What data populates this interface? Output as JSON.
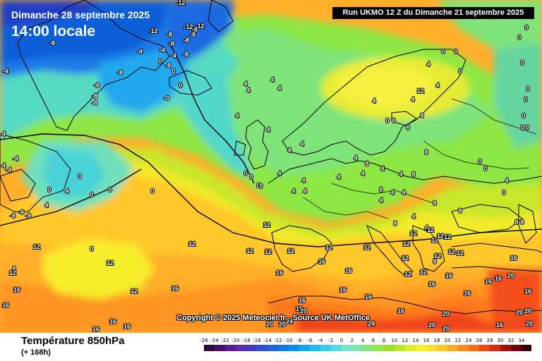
{
  "header": {
    "date": "Dimanche 28 septembre 2025",
    "time": "14:00 locale",
    "run": "Run UKMO 12 Z du Dimanche 21 septembre 2025"
  },
  "copyright": "Copyright © 2025 Meteociel.fr - Source UK MetOffice",
  "footer": {
    "title": "Température 850hPa",
    "subtitle": "(+ 168h)"
  },
  "scale": {
    "ticks": [
      "-26",
      "-24",
      "-22",
      "-20",
      "-18",
      "-16",
      "-14",
      "-12",
      "-10",
      "-8",
      "-6",
      "-4",
      "-2",
      "0",
      "2",
      "4",
      "6",
      "8",
      "10",
      "12",
      "14",
      "16",
      "18",
      "20",
      "22",
      "24",
      "26",
      "28",
      "30",
      "32",
      "34"
    ],
    "colors": [
      "#2b0a3d",
      "#46106b",
      "#5b1a94",
      "#5a2bb8",
      "#4438c4",
      "#2e4fd0",
      "#1a63dc",
      "#0a78e6",
      "#0a8fef",
      "#14a6f2",
      "#22baf2",
      "#39ccef",
      "#56dbe6",
      "#72e6d2",
      "#7fe6a6",
      "#8be67a",
      "#90e64a",
      "#9ae02b",
      "#b8e52a",
      "#dcef2a",
      "#f7f02a",
      "#ffe02a",
      "#ffc62a",
      "#ffaa26",
      "#ff8a1e",
      "#ff6a16",
      "#f5470f",
      "#d82a0c",
      "#a80f0a",
      "#70060b",
      "#3a0208"
    ]
  },
  "labels": [
    {
      "t": "-12"
    },
    {
      "t": "-12"
    },
    {
      "t": "-12"
    },
    {
      "t": "-12"
    },
    {
      "t": "-8"
    },
    {
      "t": "-4"
    },
    {
      "t": "-8"
    },
    {
      "t": "-8"
    },
    {
      "t": "-8"
    },
    {
      "t": "-8"
    },
    {
      "t": "-4"
    },
    {
      "t": "-4"
    },
    {
      "t": "-8"
    },
    {
      "t": "-8"
    },
    {
      "t": "-8"
    },
    {
      "t": "-8"
    },
    {
      "t": "-4"
    },
    {
      "t": "-8"
    },
    {
      "t": "0"
    },
    {
      "t": "0"
    },
    {
      "t": "0"
    },
    {
      "t": "-0"
    },
    {
      "t": "-8"
    },
    {
      "t": "-8"
    },
    {
      "t": "-4"
    },
    {
      "t": "-4"
    },
    {
      "t": "0"
    },
    {
      "t": "0"
    },
    {
      "t": "0"
    },
    {
      "t": "0"
    },
    {
      "t": "0"
    },
    {
      "t": "4"
    },
    {
      "t": "4"
    },
    {
      "t": "4"
    },
    {
      "t": "0"
    },
    {
      "t": "0"
    },
    {
      "t": "0"
    },
    {
      "t": "0"
    },
    {
      "t": "-4"
    },
    {
      "t": "-4"
    },
    {
      "t": "-8"
    },
    {
      "t": "-8"
    },
    {
      "t": "-8"
    },
    {
      "t": "4"
    },
    {
      "t": "4"
    },
    {
      "t": "4"
    },
    {
      "t": "4"
    },
    {
      "t": "4"
    },
    {
      "t": "4"
    },
    {
      "t": "4"
    },
    {
      "t": "4"
    },
    {
      "t": "4"
    },
    {
      "t": "4"
    },
    {
      "t": "4"
    },
    {
      "t": "4"
    },
    {
      "t": "4"
    },
    {
      "t": "4"
    },
    {
      "t": "4"
    },
    {
      "t": "12"
    },
    {
      "t": "8"
    },
    {
      "t": "8"
    },
    {
      "t": "8"
    },
    {
      "t": "8"
    },
    {
      "t": "4"
    },
    {
      "t": "4"
    },
    {
      "t": "4"
    },
    {
      "t": "0"
    },
    {
      "t": "0"
    },
    {
      "t": "0"
    },
    {
      "t": "0"
    },
    {
      "t": "0"
    },
    {
      "t": "0"
    },
    {
      "t": "0"
    },
    {
      "t": "0"
    },
    {
      "t": "0"
    },
    {
      "t": "0"
    },
    {
      "t": "0"
    },
    {
      "t": "0"
    },
    {
      "t": "4"
    },
    {
      "t": "4"
    },
    {
      "t": "4"
    },
    {
      "t": "4"
    },
    {
      "t": "4"
    },
    {
      "t": "4"
    },
    {
      "t": "4"
    },
    {
      "t": "4"
    },
    {
      "t": "8"
    },
    {
      "t": "8"
    },
    {
      "t": "8"
    },
    {
      "t": "8"
    },
    {
      "t": "8"
    },
    {
      "t": "8"
    },
    {
      "t": "0"
    },
    {
      "t": "0"
    },
    {
      "t": "0"
    },
    {
      "t": "0"
    },
    {
      "t": "0"
    },
    {
      "t": "0"
    },
    {
      "t": "12"
    },
    {
      "t": "12"
    },
    {
      "t": "12"
    },
    {
      "t": "12"
    },
    {
      "t": "12"
    },
    {
      "t": "12"
    },
    {
      "t": "12"
    },
    {
      "t": "12"
    },
    {
      "t": "12"
    },
    {
      "t": "12"
    },
    {
      "t": "12"
    },
    {
      "t": "12"
    },
    {
      "t": "12"
    },
    {
      "t": "12"
    },
    {
      "t": "12"
    },
    {
      "t": "12"
    },
    {
      "t": "12"
    },
    {
      "t": "12"
    },
    {
      "t": "12"
    },
    {
      "t": "12"
    },
    {
      "t": "12"
    },
    {
      "t": "12"
    },
    {
      "t": "8"
    },
    {
      "t": "8"
    },
    {
      "t": "8"
    },
    {
      "t": "12"
    },
    {
      "t": "16"
    },
    {
      "t": "16"
    },
    {
      "t": "16"
    },
    {
      "t": "16"
    },
    {
      "t": "16"
    },
    {
      "t": "16"
    },
    {
      "t": "16"
    },
    {
      "t": "16"
    },
    {
      "t": "16"
    },
    {
      "t": "16"
    },
    {
      "t": "16"
    },
    {
      "t": "16"
    },
    {
      "t": "16"
    },
    {
      "t": "16"
    },
    {
      "t": "16"
    },
    {
      "t": "16"
    },
    {
      "t": "16"
    },
    {
      "t": "16"
    },
    {
      "t": "16"
    },
    {
      "t": "16"
    },
    {
      "t": "16"
    },
    {
      "t": "16"
    },
    {
      "t": "20"
    },
    {
      "t": "20"
    },
    {
      "t": "20"
    },
    {
      "t": "20"
    },
    {
      "t": "20"
    },
    {
      "t": "20"
    },
    {
      "t": "20"
    },
    {
      "t": "20"
    },
    {
      "t": "20"
    },
    {
      "t": "20"
    },
    {
      "t": "24"
    },
    {
      "t": "24"
    },
    {
      "t": "24"
    },
    {
      "t": "24"
    },
    {
      "t": "24"
    }
  ]
}
